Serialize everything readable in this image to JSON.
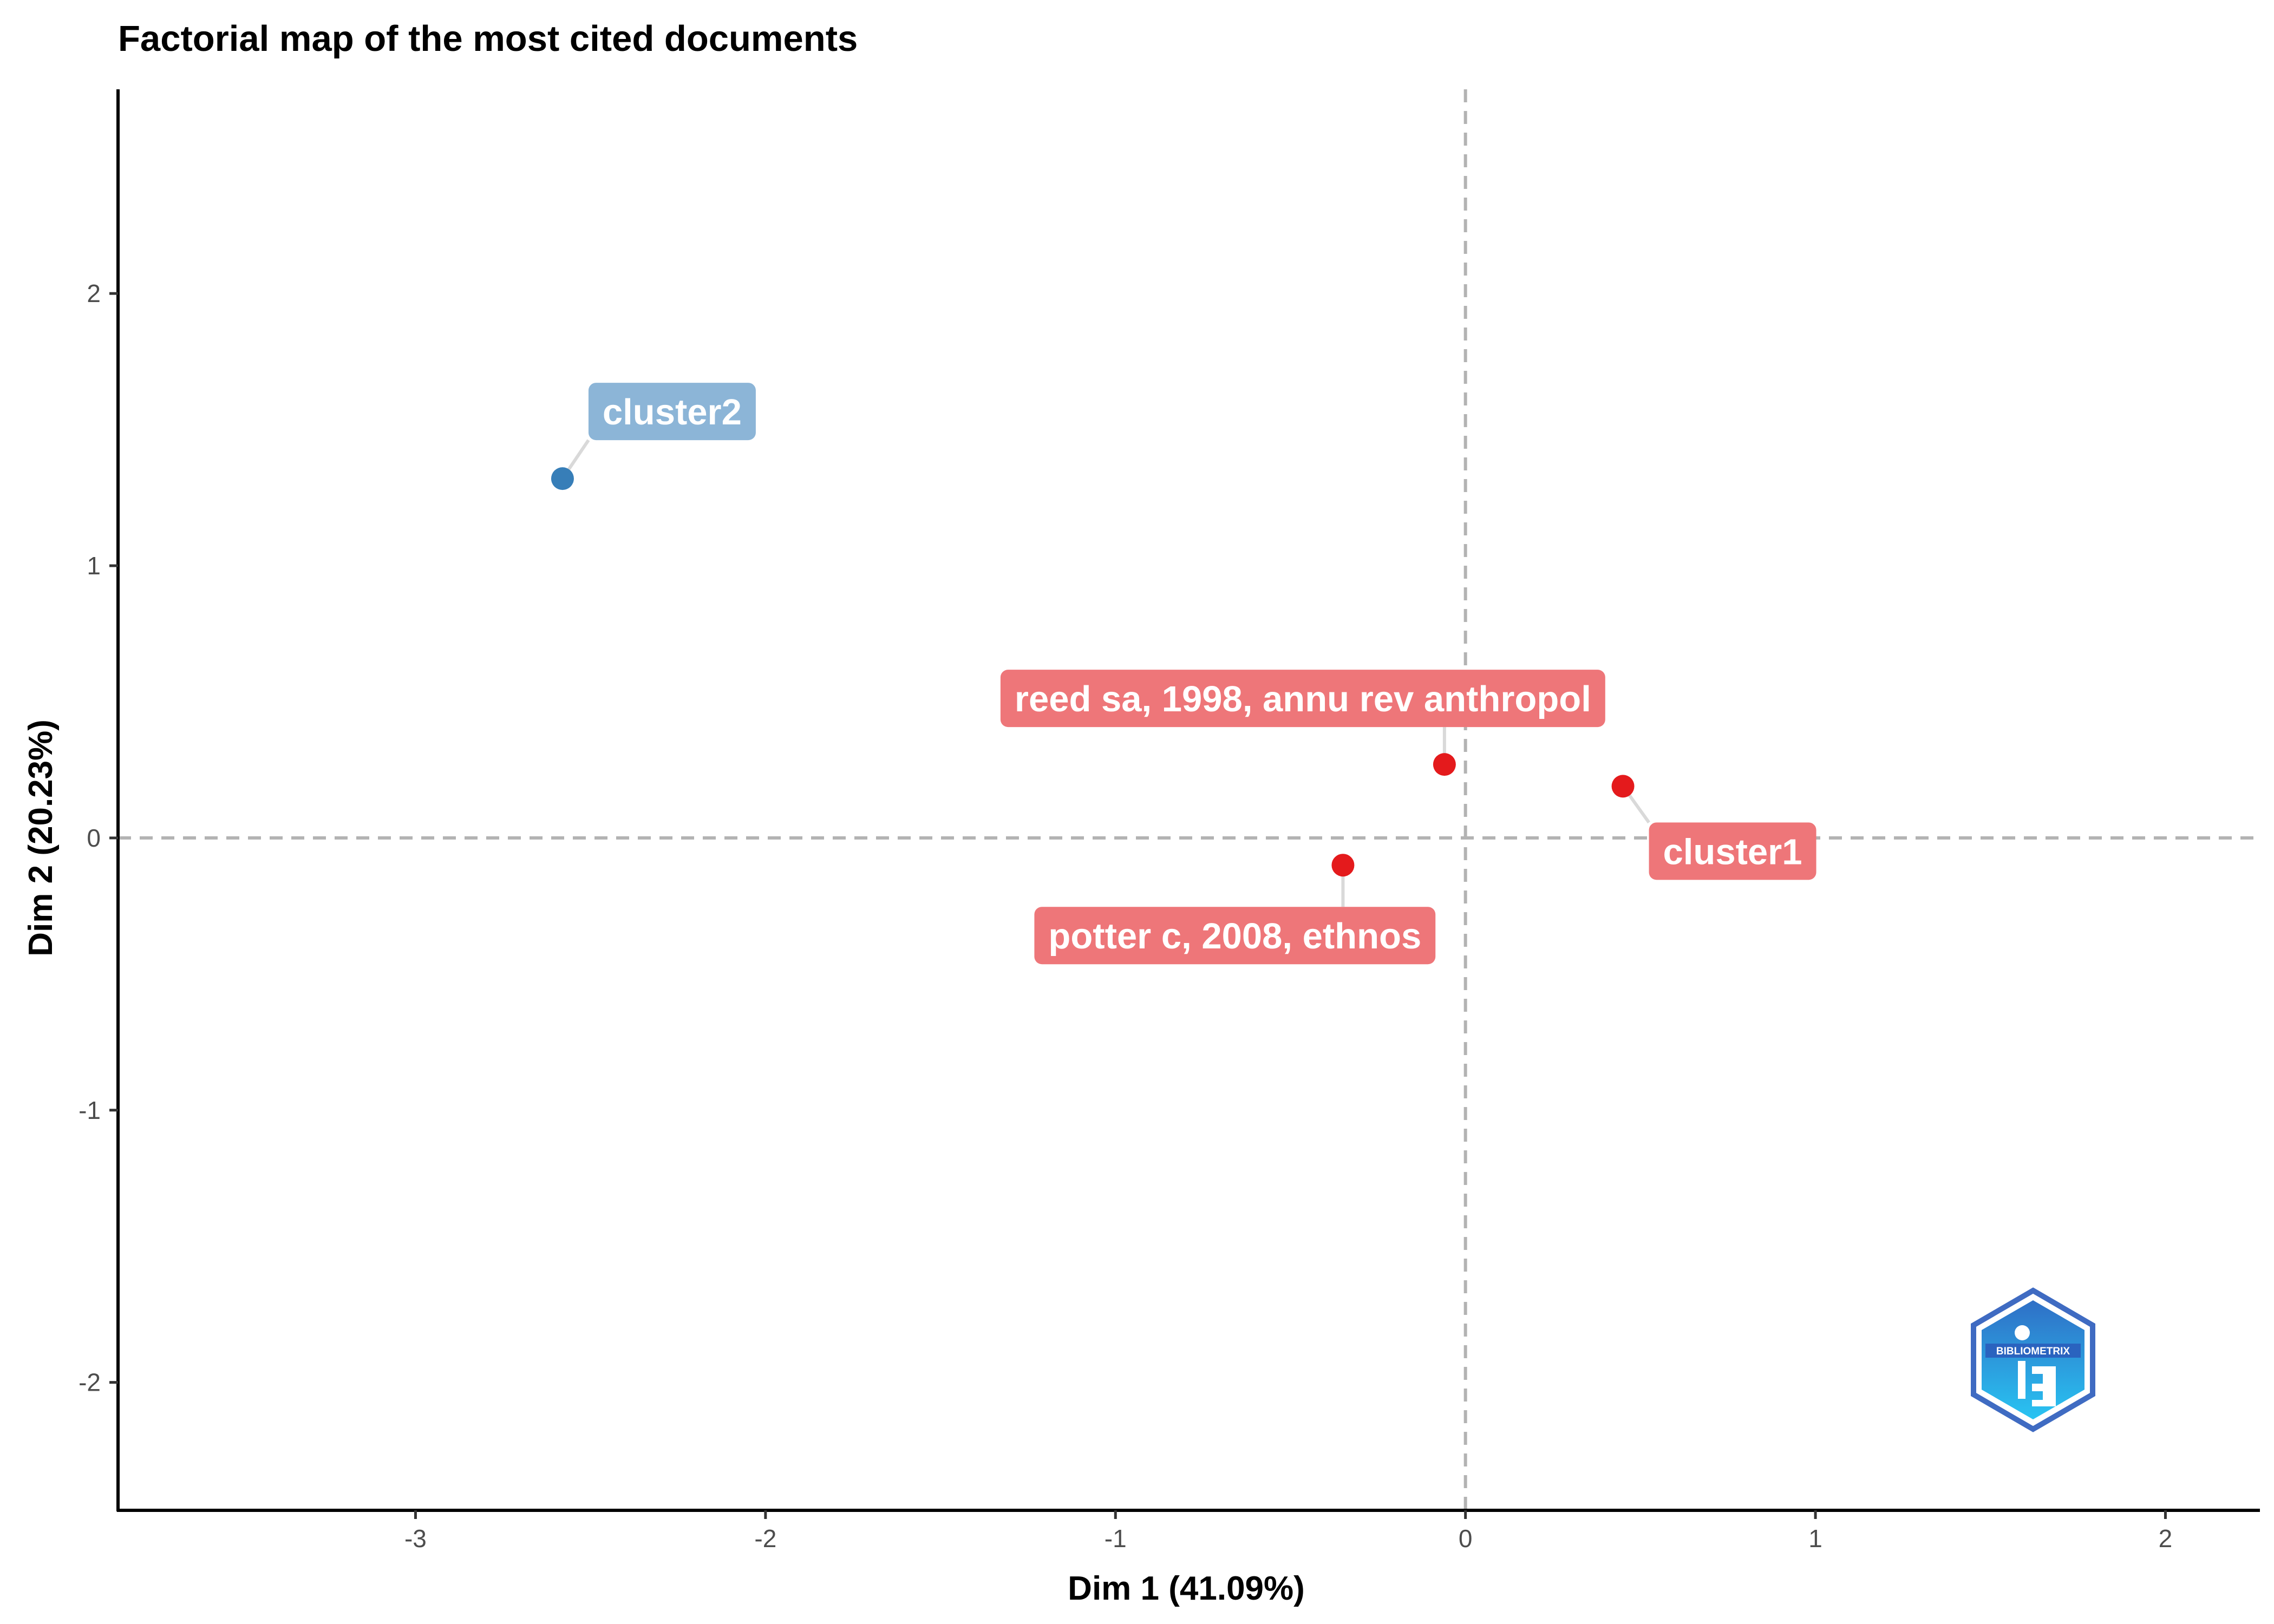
{
  "chart_data": {
    "type": "scatter",
    "title": "Factorial map of the most cited documents",
    "xlabel": "Dim 1 (41.09%)",
    "ylabel": "Dim 2 (20.23%)",
    "xlim": [
      -3.85,
      2.27
    ],
    "ylim": [
      -2.47,
      2.75
    ],
    "xticks": [
      -3,
      -2,
      -1,
      0,
      1,
      2
    ],
    "yticks": [
      -2,
      -1,
      0,
      1,
      2
    ],
    "reference_lines": {
      "x": 0,
      "y": 0,
      "style": "dashed"
    },
    "grid": false,
    "legend": "none",
    "points": [
      {
        "label": "cluster2",
        "x": -2.58,
        "y": 1.32,
        "color": "#377EB8"
      },
      {
        "label": "reed sa, 1998, annu rev anthropol",
        "x": -0.06,
        "y": 0.27,
        "color": "#E41A1C"
      },
      {
        "label": "cluster1",
        "x": 0.45,
        "y": 0.19,
        "color": "#E41A1C"
      },
      {
        "label": "potter c, 2008, ethnos",
        "x": -0.35,
        "y": -0.1,
        "color": "#E41A1C"
      }
    ]
  },
  "colors": {
    "cluster1_point": "#E41A1C",
    "cluster1_label_bg": "#EE7679",
    "cluster2_point": "#377EB8",
    "cluster2_label_bg": "#8CB5D7",
    "reference_line": "#b3b3b3",
    "axis": "#000000"
  },
  "watermark": {
    "text": "BIBLIOMETRIX",
    "icon": "bibliometrix-hexagon-logo"
  }
}
